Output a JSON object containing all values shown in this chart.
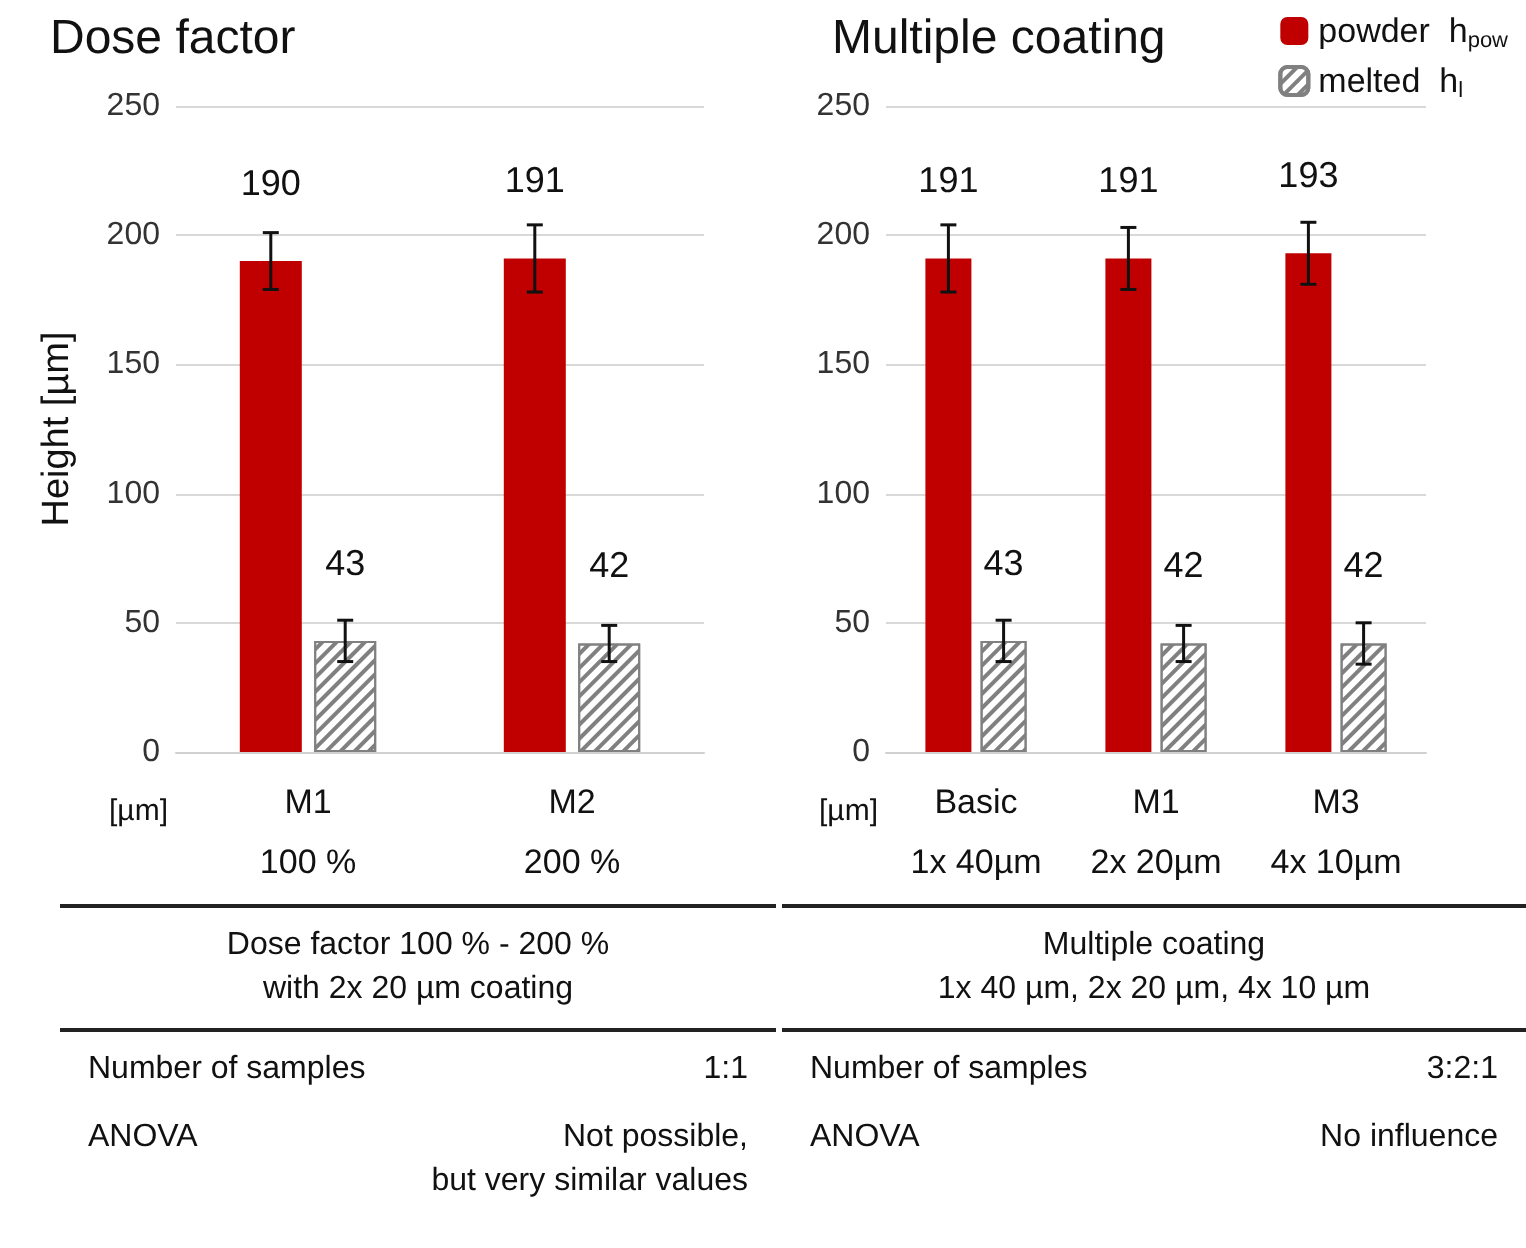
{
  "chart_data": [
    {
      "type": "bar",
      "title": "Dose factor",
      "ylabel": "Height [µm]",
      "xlabel": "[µm]",
      "categories": [
        "M1\n100 %",
        "M2\n200 %"
      ],
      "series": [
        {
          "color": "#c00000",
          "values": [
            190,
            191
          ],
          "errors": [
            11,
            13
          ]
        },
        {
          "color": "#808080",
          "values": [
            43,
            42
          ],
          "errors": [
            8,
            7
          ]
        }
      ],
      "ylim": [
        0,
        250
      ],
      "yticks": [
        0,
        50,
        100,
        150,
        200,
        250
      ],
      "grid": "y",
      "legend": false,
      "data_labels": true,
      "annotations": [
        "Dose factor 100 % - 200 %\nwith 2x 20 µm coating",
        "Number of samples",
        "1:1",
        "ANOVA",
        "Not possible,\nbut very similar values"
      ]
    },
    {
      "type": "bar",
      "title": "Multiple coating",
      "xlabel": "[µm]",
      "categories": [
        "Basic\n1x 40µm",
        "M1\n2x 20µm",
        "M3\n4x 10µm"
      ],
      "series": [
        {
          "name": "powder h$_{pow}$",
          "color": "#c00000",
          "values": [
            191,
            191,
            193
          ],
          "errors": [
            13,
            12,
            12
          ]
        },
        {
          "name": "melted h$_{l}$",
          "color": "#808080",
          "values": [
            43,
            42,
            42
          ],
          "errors": [
            8,
            7,
            8
          ]
        }
      ],
      "ylim": [
        0,
        250
      ],
      "yticks": [
        0,
        50,
        100,
        150,
        200,
        250
      ],
      "grid": "y",
      "legend": "top right",
      "data_labels": true,
      "annotations": [
        "Multiple coating\n1x 40 µm, 2x 20 µm, 4x 10 µm",
        "Number of samples",
        "3:2:1",
        "ANOVA",
        "No influence"
      ]
    }
  ]
}
